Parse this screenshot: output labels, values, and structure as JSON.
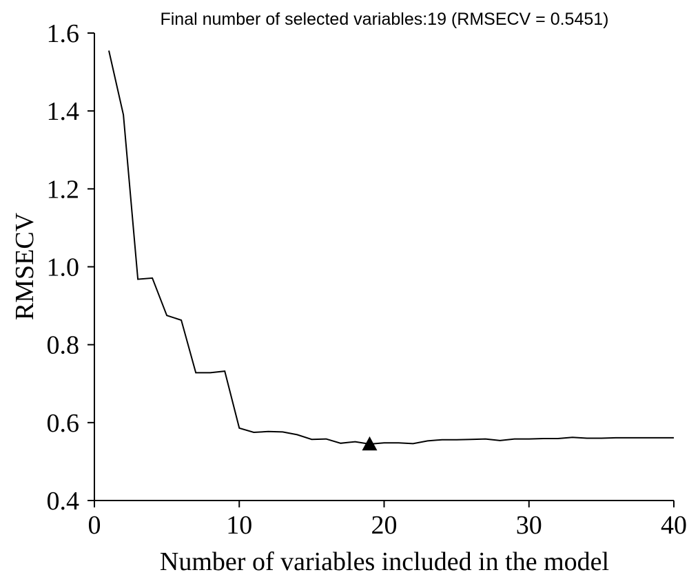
{
  "chart_data": {
    "type": "line",
    "title": "Final number of selected variables:19 (RMSECV = 0.5451)",
    "xlabel": "Number of variables included in the model",
    "ylabel": "RMSECV",
    "xlim": [
      0,
      40
    ],
    "ylim": [
      0.4,
      1.6
    ],
    "xticks": [
      0,
      10,
      20,
      30,
      40
    ],
    "xtick_labels": [
      "0",
      "10",
      "20",
      "30",
      "40"
    ],
    "yticks": [
      0.4,
      0.6,
      0.8,
      1.0,
      1.2,
      1.4,
      1.6
    ],
    "ytick_labels": [
      "0.4",
      "0.6",
      "0.8",
      "1.0",
      "1.2",
      "1.4",
      "1.6"
    ],
    "grid": false,
    "x": [
      1,
      2,
      3,
      4,
      5,
      6,
      7,
      8,
      9,
      10,
      11,
      12,
      13,
      14,
      15,
      16,
      17,
      18,
      19,
      20,
      21,
      22,
      23,
      24,
      25,
      26,
      27,
      28,
      29,
      30,
      31,
      32,
      33,
      34,
      35,
      36,
      37,
      38,
      39,
      40
    ],
    "series": [
      {
        "values": [
          1.555,
          1.39,
          0.968,
          0.971,
          0.875,
          0.863,
          0.728,
          0.728,
          0.732,
          0.586,
          0.575,
          0.577,
          0.576,
          0.569,
          0.557,
          0.558,
          0.547,
          0.551,
          0.545,
          0.548,
          0.548,
          0.546,
          0.553,
          0.556,
          0.556,
          0.557,
          0.558,
          0.554,
          0.558,
          0.558,
          0.559,
          0.559,
          0.562,
          0.56,
          0.56,
          0.561,
          0.561,
          0.561,
          0.561,
          0.561
        ]
      }
    ],
    "marker": {
      "x": 19,
      "y": 0.5451,
      "shape": "triangle",
      "color": "#000000"
    }
  }
}
